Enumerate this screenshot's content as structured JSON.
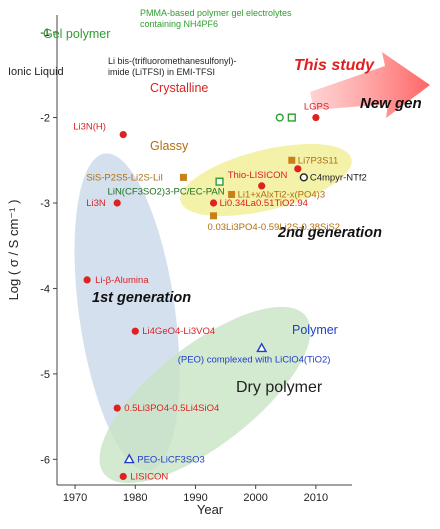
{
  "chart_data": {
    "type": "scatter",
    "xlabel": "Year",
    "ylabel": "Log ( σ / S cm⁻¹ )",
    "xlim": [
      1967,
      2016
    ],
    "ylim": [
      -6.3,
      -0.8
    ],
    "xticks": [
      "1970",
      "1980",
      "1990",
      "2000",
      "2010"
    ],
    "yticks": [
      "-1",
      "-2",
      "-3",
      "-4",
      "-5",
      "-6"
    ],
    "annotations": {
      "gel_polymer": "Gel polymer",
      "ionic_liquid": "Ionic Liquid",
      "pmma_line1": "PMMA-based polymer gel electrolytes",
      "pmma_line2": "containing NH4PF6",
      "litfsi_line1": "Li bis-(trifluoromethanesulfonyl)-",
      "litfsi_line2": "imide (LiTFSI) in EMI-TFSI",
      "this_study": "This study",
      "new_gen": "New gen",
      "crystalline": "Crystalline",
      "glassy": "Glassy",
      "second_gen": "2nd generation",
      "first_gen": "1st generation",
      "polymer": "Polymer",
      "dry_polymer": "Dry polymer"
    },
    "colors": {
      "crystal": "#dd2222",
      "glass": "#c8801a",
      "green": "#2e9e2e",
      "blue": "#2040c8",
      "black": "#222222",
      "region_blue": "#c5d6e8",
      "region_green": "#c8e3c4",
      "region_yellow": "#f2ee9a"
    },
    "points": [
      {
        "label": "LGPS",
        "x": 2010,
        "y": -2.0,
        "marker": "circle",
        "color": "crystal"
      },
      {
        "label": "Li3N(H)",
        "x": 1978,
        "y": -2.2,
        "marker": "circle",
        "color": "crystal"
      },
      {
        "label": "Li3N",
        "x": 1977,
        "y": -3.0,
        "marker": "circle",
        "color": "crystal"
      },
      {
        "label": "Li-β-Alumina",
        "x": 1972,
        "y": -3.9,
        "marker": "circle",
        "color": "crystal"
      },
      {
        "label": "Li4GeO4-Li3VO4",
        "x": 1980,
        "y": -4.5,
        "marker": "circle",
        "color": "crystal"
      },
      {
        "label": "0.5Li3PO4-0.5Li4SiO4",
        "x": 1977,
        "y": -5.4,
        "marker": "circle",
        "color": "crystal"
      },
      {
        "label": "LISICON",
        "x": 1978,
        "y": -6.2,
        "marker": "circle",
        "color": "crystal"
      },
      {
        "label": "Thio-LISICON",
        "x": 2001,
        "y": -2.8,
        "marker": "circle",
        "color": "crystal"
      },
      {
        "label": "Li0.34La0.51TiO2.94",
        "x": 1993,
        "y": -3.0,
        "marker": "circle",
        "color": "crystal"
      },
      {
        "label": "",
        "x": 2007,
        "y": -2.6,
        "marker": "circle",
        "color": "crystal"
      },
      {
        "label": "Li7P3S11",
        "x": 2006,
        "y": -2.5,
        "marker": "square",
        "color": "glass"
      },
      {
        "label": "SiS-P2S5-Li2S-LiI",
        "x": 1988,
        "y": -2.7,
        "marker": "square",
        "color": "glass"
      },
      {
        "label": "Li1+xAlxTi2-x(PO4)3",
        "x": 1996,
        "y": -2.9,
        "marker": "square",
        "color": "glass"
      },
      {
        "label": "0.03Li3PO4-0.59Li2S-0.38SiS2",
        "x": 1993,
        "y": -3.15,
        "marker": "square",
        "color": "glass"
      },
      {
        "label": "LiN(CF3SO2)3-PC/EC-PAN",
        "x": 1994,
        "y": -2.75,
        "marker": "square-open",
        "color": "green"
      },
      {
        "label": "",
        "x": 2006,
        "y": -2.0,
        "marker": "square-open",
        "color": "green"
      },
      {
        "label": "",
        "x": 2004,
        "y": -2.0,
        "marker": "circle-open",
        "color": "green"
      },
      {
        "label": "C4mpyr-NTf2",
        "x": 2008,
        "y": -2.7,
        "marker": "circle-open",
        "color": "black"
      },
      {
        "label": "(PEO) complexed with LiClO4(TiO2)",
        "x": 2001,
        "y": -4.7,
        "marker": "triangle-open",
        "color": "blue"
      },
      {
        "label": "PEO-LiCF3SO3",
        "x": 1979,
        "y": -6.0,
        "marker": "triangle-open",
        "color": "blue"
      }
    ]
  }
}
